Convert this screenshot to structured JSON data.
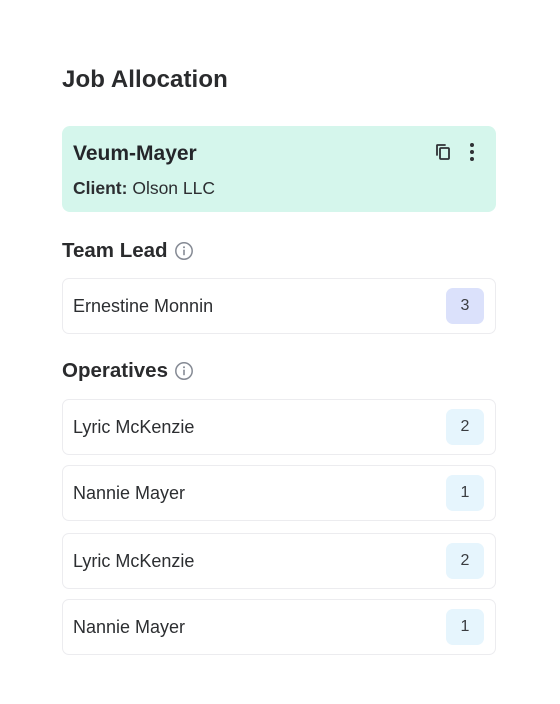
{
  "page": {
    "title": "Job Allocation"
  },
  "job": {
    "name": "Veum-Mayer",
    "client_label": "Client:",
    "client_value": "Olson LLC",
    "actions": [
      {
        "icon": "copy-icon"
      },
      {
        "icon": "more-vertical-icon"
      }
    ]
  },
  "team_lead": {
    "title": "Team Lead",
    "info_icon": "info-icon",
    "members": [
      {
        "name": "Ernestine Monnin",
        "count": "3"
      }
    ]
  },
  "operatives": {
    "title": "Operatives",
    "info_icon": "info-icon",
    "members": [
      {
        "name": "Lyric McKenzie",
        "count": "2"
      },
      {
        "name": "Nannie Mayer",
        "count": "1"
      },
      {
        "name": "Lyric McKenzie",
        "count": "2"
      },
      {
        "name": "Nannie Mayer",
        "count": "1"
      }
    ]
  },
  "colors": {
    "job_card_bg": "#d5f6ec",
    "lead_badge_bg": "#dbe1fb",
    "operative_badge_bg": "#e6f5fd",
    "text": "#2a2b2d",
    "icon": "#7b7f88"
  }
}
